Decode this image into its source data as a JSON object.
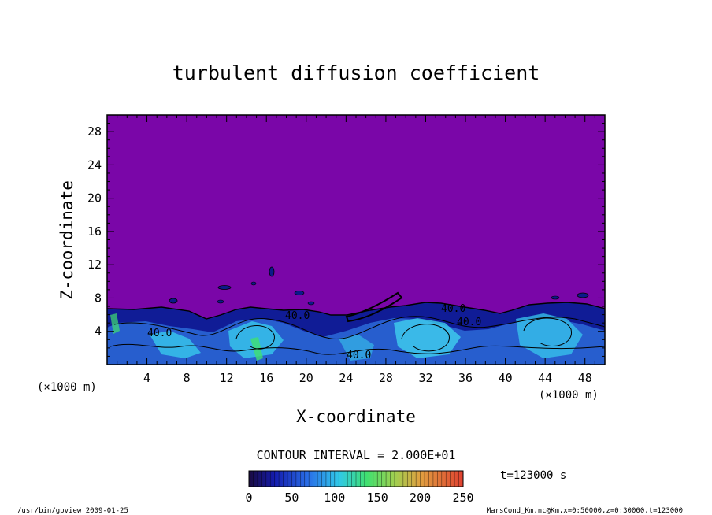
{
  "chart_data": {
    "type": "heatmap",
    "title": "turbulent diffusion coefficient",
    "xlabel": "X-coordinate",
    "ylabel": "Z-coordinate",
    "x_unit": "(×1000 m)",
    "z_unit": "(×1000 m)",
    "xlim": [
      0,
      50
    ],
    "ylim": [
      0,
      30
    ],
    "x_ticks": [
      4,
      8,
      12,
      16,
      20,
      24,
      28,
      32,
      36,
      40,
      44,
      48
    ],
    "y_ticks": [
      4,
      8,
      12,
      16,
      20,
      24,
      28
    ],
    "contour_interval": "CONTOUR INTERVAL = 2.000E+01",
    "contour_labels": [
      "40.0",
      "40.0",
      "40.0",
      "40.0",
      "40.0"
    ],
    "colorbar": {
      "min": 0,
      "max": 250,
      "ticks": [
        0,
        50,
        100,
        150,
        200,
        250
      ]
    },
    "time_label": "t=123000 s",
    "colors": {
      "background_field": "#7a06a8",
      "low": "#0b1a8a",
      "mid": "#2a7fd8",
      "high": "#30e0f0"
    }
  },
  "footer": {
    "program": "/usr/bin/gpview  2009-01-25",
    "source": "MarsCond_Km.nc@Km,x=0:50000,z=0:30000,t=123000"
  }
}
